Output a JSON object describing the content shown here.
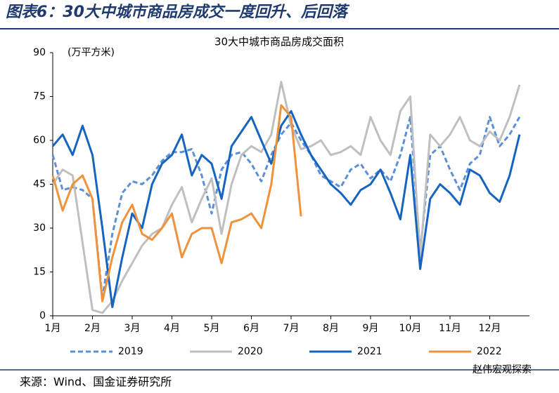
{
  "chart_data": {
    "type": "line",
    "title": "图表6：30大中城市商品房成交一度回升、后回落",
    "subtitle": "30大中城市商品房成交面积",
    "y_label": "(万平方米)",
    "source": "来源：Wind、国金证券研究所",
    "watermark": "赵伟宏观探索",
    "categories": [
      "1月",
      null,
      null,
      null,
      "2月",
      null,
      null,
      null,
      "3月",
      null,
      null,
      null,
      "4月",
      null,
      null,
      null,
      "5月",
      null,
      null,
      null,
      "6月",
      null,
      null,
      null,
      "7月",
      null,
      null,
      null,
      "8月",
      null,
      null,
      null,
      "9月",
      null,
      null,
      null,
      "10月",
      null,
      null,
      null,
      "11月",
      null,
      null,
      null,
      "12月",
      null,
      null,
      null
    ],
    "ylim": [
      0,
      90
    ],
    "yticks": [
      0,
      15,
      30,
      45,
      60,
      75,
      90
    ],
    "legend": "bottom",
    "series": [
      {
        "name": "2019",
        "color": "#5b8fd6",
        "dashed": true,
        "values": [
          55,
          43,
          44,
          43,
          40,
          6,
          28,
          42,
          46,
          45,
          48,
          53,
          56,
          56,
          57,
          48,
          35,
          50,
          55,
          56,
          52,
          46,
          55,
          62,
          66,
          60,
          55,
          48,
          46,
          44,
          50,
          52,
          47,
          50,
          46,
          55,
          68,
          22,
          55,
          58,
          50,
          43,
          52,
          55,
          68,
          58,
          62,
          68
        ]
      },
      {
        "name": "2020",
        "color": "#bfbfbf",
        "dashed": false,
        "values": [
          45,
          50,
          48,
          25,
          2,
          1,
          5,
          12,
          18,
          24,
          28,
          30,
          38,
          44,
          32,
          40,
          47,
          28,
          45,
          55,
          58,
          56,
          62,
          80,
          65,
          57,
          58,
          60,
          55,
          56,
          58,
          55,
          68,
          60,
          55,
          70,
          75,
          20,
          62,
          58,
          62,
          68,
          60,
          58,
          63,
          60,
          68,
          79
        ]
      },
      {
        "name": "2021",
        "color": "#1565c0",
        "dashed": false,
        "values": [
          58,
          62,
          55,
          65,
          55,
          30,
          3,
          20,
          35,
          30,
          45,
          52,
          55,
          62,
          48,
          55,
          52,
          40,
          58,
          63,
          68,
          60,
          52,
          65,
          70,
          62,
          55,
          50,
          45,
          42,
          38,
          43,
          45,
          50,
          42,
          33,
          55,
          16,
          40,
          45,
          42,
          38,
          50,
          48,
          42,
          39,
          48,
          62
        ]
      },
      {
        "name": "2022",
        "color": "#f0923c",
        "dashed": false,
        "values": [
          48,
          36,
          45,
          48,
          40,
          5,
          20,
          32,
          38,
          28,
          26,
          30,
          35,
          20,
          28,
          30,
          30,
          18,
          32,
          33,
          35,
          30,
          45,
          72,
          68,
          34,
          null,
          null,
          null,
          null,
          null,
          null,
          null,
          null,
          null,
          null,
          null,
          null,
          null,
          null,
          null,
          null,
          null,
          null,
          null,
          null,
          null,
          null
        ]
      }
    ]
  }
}
